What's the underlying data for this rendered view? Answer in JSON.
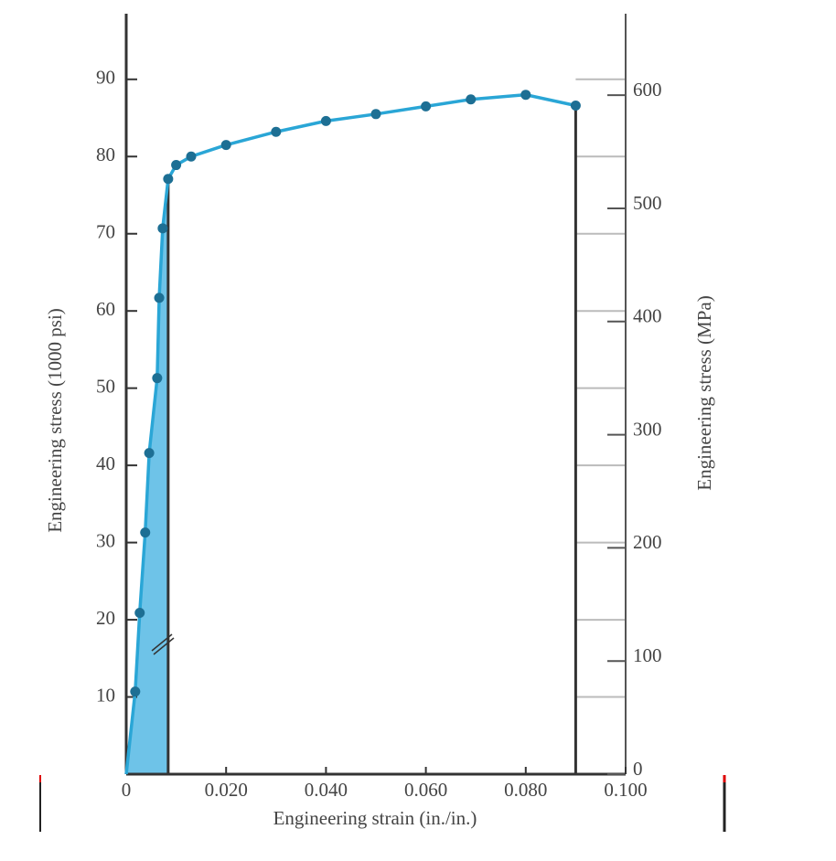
{
  "chart_data": {
    "type": "line",
    "x_label": "Engineering strain (in./in.)",
    "y_label": "Engineering stress (1000 psi)",
    "y2_label": "Engineering stress (MPa)",
    "x": [
      0,
      0.0018,
      0.0027,
      0.0038,
      0.0046,
      0.0062,
      0.0066,
      0.0073,
      0.0084,
      0.01,
      0.013,
      0.02,
      0.03,
      0.04,
      0.05,
      0.06,
      0.069,
      0.08,
      0.09
    ],
    "series": [
      {
        "name": "Engineering stress",
        "color": "#2aa6d6",
        "values": [
          0,
          10.7,
          20.9,
          31.3,
          41.6,
          51.3,
          61.7,
          70.7,
          77.1,
          78.9,
          80,
          81.5,
          83.2,
          84.6,
          85.5,
          86.5,
          87.4,
          88,
          86.6
        ]
      }
    ],
    "xlim": [
      0,
      0.1
    ],
    "xticks": [
      0,
      {
        "value": 0.02,
        "label": "0.020"
      },
      {
        "value": 0.04,
        "label": "0.040"
      },
      {
        "value": 0.06,
        "label": "0.060"
      },
      {
        "value": 0.08,
        "label": "0.080"
      },
      {
        "value": 0.1,
        "label": "0.100"
      }
    ],
    "ylim": [
      0,
      98.5
    ],
    "yticks": [
      10,
      20,
      30,
      40,
      50,
      60,
      70,
      80,
      90
    ],
    "y2lim": [
      0,
      672
    ],
    "y2ticks": [
      0,
      100,
      200,
      300,
      400,
      500,
      600
    ],
    "fill_color": "#6ec3e8",
    "marker_color": "#1d6f94"
  }
}
